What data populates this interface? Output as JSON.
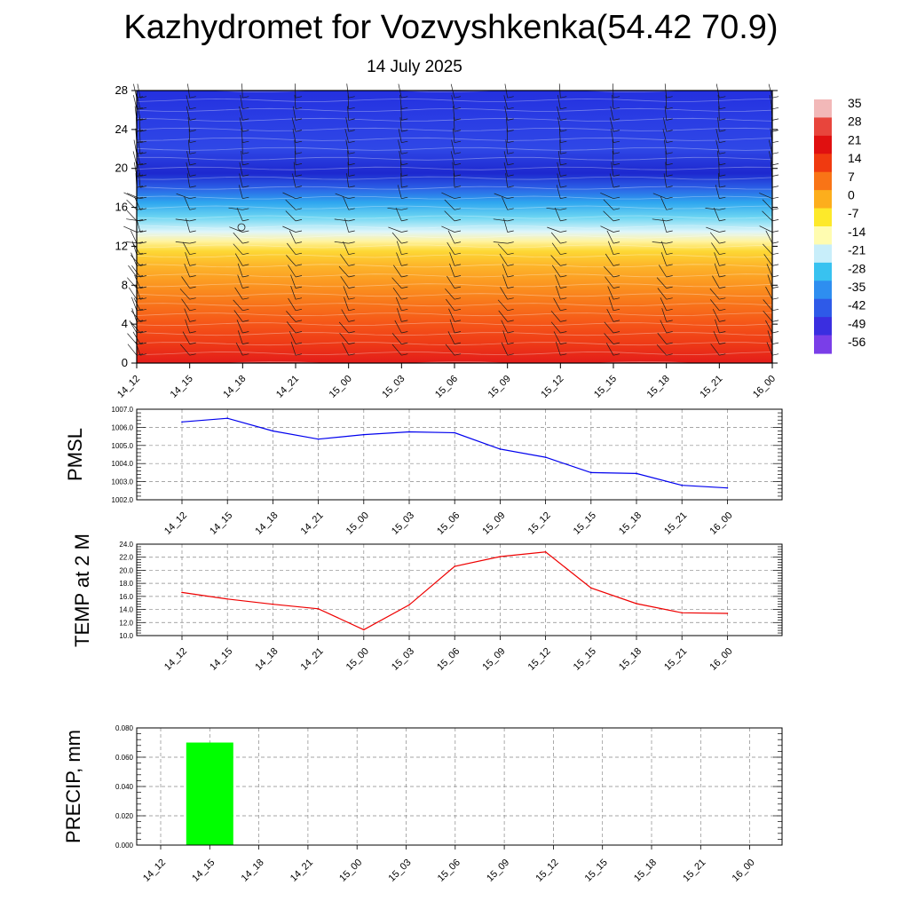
{
  "title": "Kazhydromet for Vozvyshkenka(54.42 70.9)",
  "subtitle": "14 July 2025",
  "chart_data": [
    {
      "type": "heatmap",
      "x_ticks": [
        "14_12",
        "14_15",
        "14_18",
        "14_21",
        "15_00",
        "15_03",
        "15_06",
        "15_09",
        "15_12",
        "15_15",
        "15_18",
        "15_21",
        "16_00"
      ],
      "y_ticks": [
        "0",
        "4",
        "8",
        "12",
        "16",
        "20",
        "24",
        "28"
      ],
      "ylim": [
        0,
        28
      ],
      "colorbar_labels": [
        "35",
        "28",
        "21",
        "14",
        "7",
        "0",
        "-7",
        "-14",
        "-21",
        "-28",
        "-35",
        "-42",
        "-49",
        "-56"
      ],
      "colorbar_colors": [
        "#f2b8b8",
        "#e8453c",
        "#e01010",
        "#f03a10",
        "#f97416",
        "#fdae1c",
        "#fde92a",
        "#fffcb0",
        "#c8eefa",
        "#38c2f0",
        "#2e8ef0",
        "#2e5ae8",
        "#3a2ee0",
        "#7a3ee8"
      ],
      "profile_levels": [
        0,
        2,
        4,
        6,
        8,
        10,
        11.5,
        12.5,
        13.5,
        15,
        16.5,
        18,
        19.5,
        22,
        25,
        28
      ],
      "profile_colors": [
        "#e31c1a",
        "#ee3a16",
        "#f55518",
        "#f8731a",
        "#fb9420",
        "#fdb52a",
        "#fdd835",
        "#fff3a0",
        "#e0f6fa",
        "#6cd5f2",
        "#2ea6ef",
        "#2b5fe6",
        "#1d28cf",
        "#2f47e6",
        "#2a3de4",
        "#2430df"
      ]
    },
    {
      "type": "line",
      "ylabel": "PMSL",
      "categories": [
        "14_12",
        "14_15",
        "14_18",
        "14_21",
        "15_00",
        "15_03",
        "15_06",
        "15_09",
        "15_12",
        "15_15",
        "15_18",
        "15_21",
        "16_00"
      ],
      "series": [
        {
          "values": [
            1006.3,
            1006.5,
            1005.8,
            1005.35,
            1005.6,
            1005.75,
            1005.7,
            1004.8,
            1004.35,
            1003.5,
            1003.45,
            1002.8,
            1002.65
          ],
          "color": "#0000ee"
        }
      ],
      "ylim": [
        1002.0,
        1007.0
      ],
      "y_ticks": [
        "1002.0",
        "1003.0",
        "1004.0",
        "1005.0",
        "1006.0",
        "1007.0"
      ],
      "grid": true
    },
    {
      "type": "line",
      "ylabel": "TEMP at 2 M",
      "categories": [
        "14_12",
        "14_15",
        "14_18",
        "14_21",
        "15_00",
        "15_03",
        "15_06",
        "15_09",
        "15_12",
        "15_15",
        "15_18",
        "15_21",
        "16_00"
      ],
      "series": [
        {
          "values": [
            16.6,
            15.6,
            14.8,
            14.1,
            10.9,
            14.7,
            20.6,
            22.1,
            22.8,
            17.3,
            14.9,
            13.5,
            13.4
          ],
          "color": "#ee0000"
        }
      ],
      "ylim": [
        10.0,
        24.0
      ],
      "y_ticks": [
        "10.0",
        "12.0",
        "14.0",
        "16.0",
        "18.0",
        "20.0",
        "22.0",
        "24.0"
      ],
      "grid": true
    },
    {
      "type": "bar",
      "ylabel": "PRECIP, mm",
      "categories": [
        "14_12",
        "14_15",
        "14_18",
        "14_21",
        "15_00",
        "15_03",
        "15_06",
        "15_09",
        "15_12",
        "15_15",
        "15_18",
        "15_21",
        "16_00"
      ],
      "values": [
        0,
        0.07,
        0,
        0,
        0,
        0,
        0,
        0,
        0,
        0,
        0,
        0,
        0
      ],
      "bar_color": "#00ff00",
      "ylim": [
        0,
        0.08
      ],
      "y_ticks": [
        "0.000",
        "0.020",
        "0.040",
        "0.060",
        "0.080"
      ],
      "grid": true
    }
  ]
}
